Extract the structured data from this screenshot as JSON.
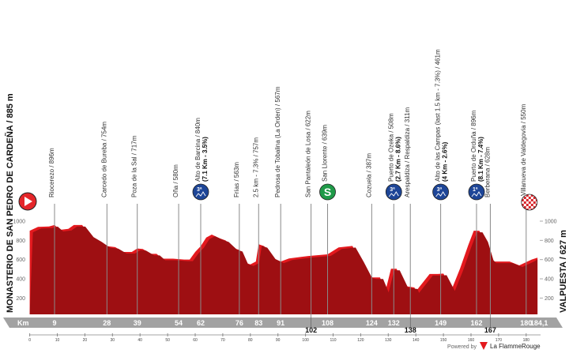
{
  "chart_data": {
    "type": "area",
    "title": "",
    "start": "MONASTERIO DE SAN PEDRO DE CARDEÑA / 885 m",
    "finish": "VALPUESTA / 627 m",
    "xlabel": "Km",
    "total_km_label": "184,1",
    "xlim": [
      0,
      184.1
    ],
    "ylim": [
      0,
      1100
    ],
    "yticks": [
      200,
      400,
      600,
      800,
      1000
    ],
    "xticks": [
      0,
      10,
      20,
      30,
      40,
      50,
      60,
      70,
      80,
      90,
      100,
      110,
      120,
      130,
      140,
      150,
      160,
      170,
      180
    ],
    "profile": [
      [
        0,
        900
      ],
      [
        3,
        940
      ],
      [
        7,
        945
      ],
      [
        9,
        960
      ],
      [
        11,
        910
      ],
      [
        14,
        920
      ],
      [
        16,
        960
      ],
      [
        19,
        960
      ],
      [
        22,
        850
      ],
      [
        25,
        800
      ],
      [
        28,
        740
      ],
      [
        31,
        730
      ],
      [
        34,
        680
      ],
      [
        37,
        680
      ],
      [
        39,
        715
      ],
      [
        41,
        710
      ],
      [
        44,
        660
      ],
      [
        46,
        660
      ],
      [
        48,
        610
      ],
      [
        52,
        610
      ],
      [
        56,
        600
      ],
      [
        58,
        600
      ],
      [
        60,
        680
      ],
      [
        62,
        740
      ],
      [
        64,
        830
      ],
      [
        66,
        860
      ],
      [
        69,
        820
      ],
      [
        71,
        800
      ],
      [
        74,
        720
      ],
      [
        76,
        700
      ],
      [
        78,
        570
      ],
      [
        80,
        550
      ],
      [
        82,
        580
      ],
      [
        83,
        760
      ],
      [
        85,
        740
      ],
      [
        88,
        620
      ],
      [
        91,
        580
      ],
      [
        94,
        612
      ],
      [
        101,
        637
      ],
      [
        108,
        655
      ],
      [
        112,
        727
      ],
      [
        117,
        742
      ],
      [
        120,
        590
      ],
      [
        123,
        425
      ],
      [
        124.5,
        415
      ],
      [
        127,
        415
      ],
      [
        129,
        275
      ],
      [
        131,
        505
      ],
      [
        133,
        505
      ],
      [
        136,
        325
      ],
      [
        139.5,
        310
      ],
      [
        140,
        270
      ],
      [
        145,
        450
      ],
      [
        148,
        450
      ],
      [
        150,
        455
      ],
      [
        153,
        290
      ],
      [
        156,
        505
      ],
      [
        159,
        750
      ],
      [
        161,
        900
      ],
      [
        163,
        900
      ],
      [
        165,
        800
      ],
      [
        167,
        610
      ],
      [
        168,
        580
      ],
      [
        174,
        580
      ],
      [
        177.5,
        540
      ],
      [
        182,
        600
      ],
      [
        184.1,
        620
      ]
    ],
    "waypoints": [
      {
        "km": 9,
        "km_label": "9",
        "label": "Riocerezo / 896m"
      },
      {
        "km": 28,
        "km_label": "28",
        "label": "Carcedo de Bureba / 754m"
      },
      {
        "km": 39,
        "km_label": "39",
        "label": "Poza de la Sal / 717m"
      },
      {
        "km": 54,
        "km_label": "54",
        "label": "Oña / 580m"
      },
      {
        "km": 62,
        "km_label": "62",
        "label": "Alto de Barcina / 840m",
        "detail": "(7.1 Km - 3.5%)",
        "icon": "kom",
        "cat": "3ª"
      },
      {
        "km": 76,
        "km_label": "76",
        "label": "Frías / 563m"
      },
      {
        "km": 83,
        "km_label": "83",
        "label": "2.5 km - 7.3% / 757m"
      },
      {
        "km": 91,
        "km_label": "91",
        "label": "Pedrosa de Tobalina (La Orden) / 567m"
      },
      {
        "km": 102,
        "km_label": "102",
        "label": "San Pantaleón de Losa / 622m",
        "low": true
      },
      {
        "km": 108,
        "km_label": "108",
        "label": "San Llorente / 639m",
        "icon": "sprint",
        "cat": "S"
      },
      {
        "km": 124,
        "km_label": "124",
        "label": "Cozuela / 387m"
      },
      {
        "km": 132,
        "km_label": "132",
        "label": "Puerto de Ozeka / 508m",
        "detail": "(2.7 Km - 8.6%)",
        "icon": "kom",
        "cat": "3ª"
      },
      {
        "km": 138,
        "km_label": "138",
        "label": "Arespaldiza / Respaldiza / 311m",
        "low": true
      },
      {
        "km": 149,
        "km_label": "149",
        "label": "Alto de las Campas (last 1.5 km - 7.3%) / 461m",
        "detail": "(4 Km - 2.6%)",
        "icon": "kom",
        "cat": "3ª"
      },
      {
        "km": 162,
        "km_label": "162",
        "label": "Puerto de Orduña / 896m",
        "detail": "(8.1 Km - 7.4%)",
        "icon": "kom",
        "cat": "1ª"
      },
      {
        "km": 167,
        "km_label": "167",
        "label": "Berberana / 628m",
        "low": true
      },
      {
        "km": 180,
        "km_label": "180",
        "label": "Villanueva de Valdegovía / 550m",
        "icon": "finish"
      }
    ],
    "colors": {
      "profile": "#9e0f12",
      "highlight": "#e3191e",
      "kom": "#1d4597",
      "sprint": "#1f9a48",
      "start": "#e4262a",
      "bar": "#a2a2a2"
    }
  },
  "footer": {
    "powered_by": "Powered by",
    "brand": "La FlammeRouge"
  }
}
